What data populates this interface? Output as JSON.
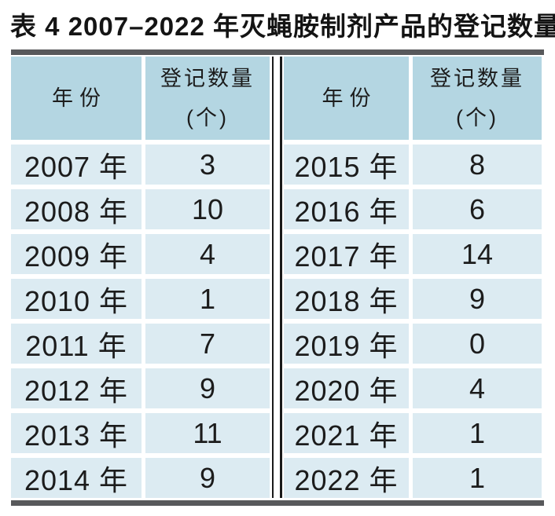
{
  "page": {
    "title": "表 4 2007–2022 年灭蝇胺制剂产品的登记数量"
  },
  "table": {
    "header": {
      "year_label": "年份",
      "count_label_line1": "登记数量",
      "count_label_line2": "(个)"
    },
    "left_rows": [
      {
        "year": "2007 年",
        "count": "3"
      },
      {
        "year": "2008 年",
        "count": "10"
      },
      {
        "year": "2009 年",
        "count": "4"
      },
      {
        "year": "2010 年",
        "count": "1"
      },
      {
        "year": "2011 年",
        "count": "7"
      },
      {
        "year": "2012 年",
        "count": "9"
      },
      {
        "year": "2013 年",
        "count": "11"
      },
      {
        "year": "2014 年",
        "count": "9"
      }
    ],
    "right_rows": [
      {
        "year": "2015 年",
        "count": "8"
      },
      {
        "year": "2016 年",
        "count": "6"
      },
      {
        "year": "2017 年",
        "count": "14"
      },
      {
        "year": "2018 年",
        "count": "9"
      },
      {
        "year": "2019 年",
        "count": "0"
      },
      {
        "year": "2020 年",
        "count": "4"
      },
      {
        "year": "2021 年",
        "count": "1"
      },
      {
        "year": "2022 年",
        "count": "1"
      }
    ]
  },
  "chart_data": {
    "type": "table",
    "title": "表 4 2007–2022 年灭蝇胺制剂产品的登记数量",
    "columns": [
      "年份",
      "登记数量(个)"
    ],
    "years": [
      2007,
      2008,
      2009,
      2010,
      2011,
      2012,
      2013,
      2014,
      2015,
      2016,
      2017,
      2018,
      2019,
      2020,
      2021,
      2022
    ],
    "values": [
      3,
      10,
      4,
      1,
      7,
      9,
      11,
      9,
      8,
      6,
      14,
      9,
      0,
      4,
      1,
      1
    ]
  },
  "colors": {
    "header_bg": "#b4d6e2",
    "row_bg": "#dcebf2",
    "rule": "#58595b",
    "divider_line": "#1a1a1a",
    "text": "#1c1c1c"
  }
}
